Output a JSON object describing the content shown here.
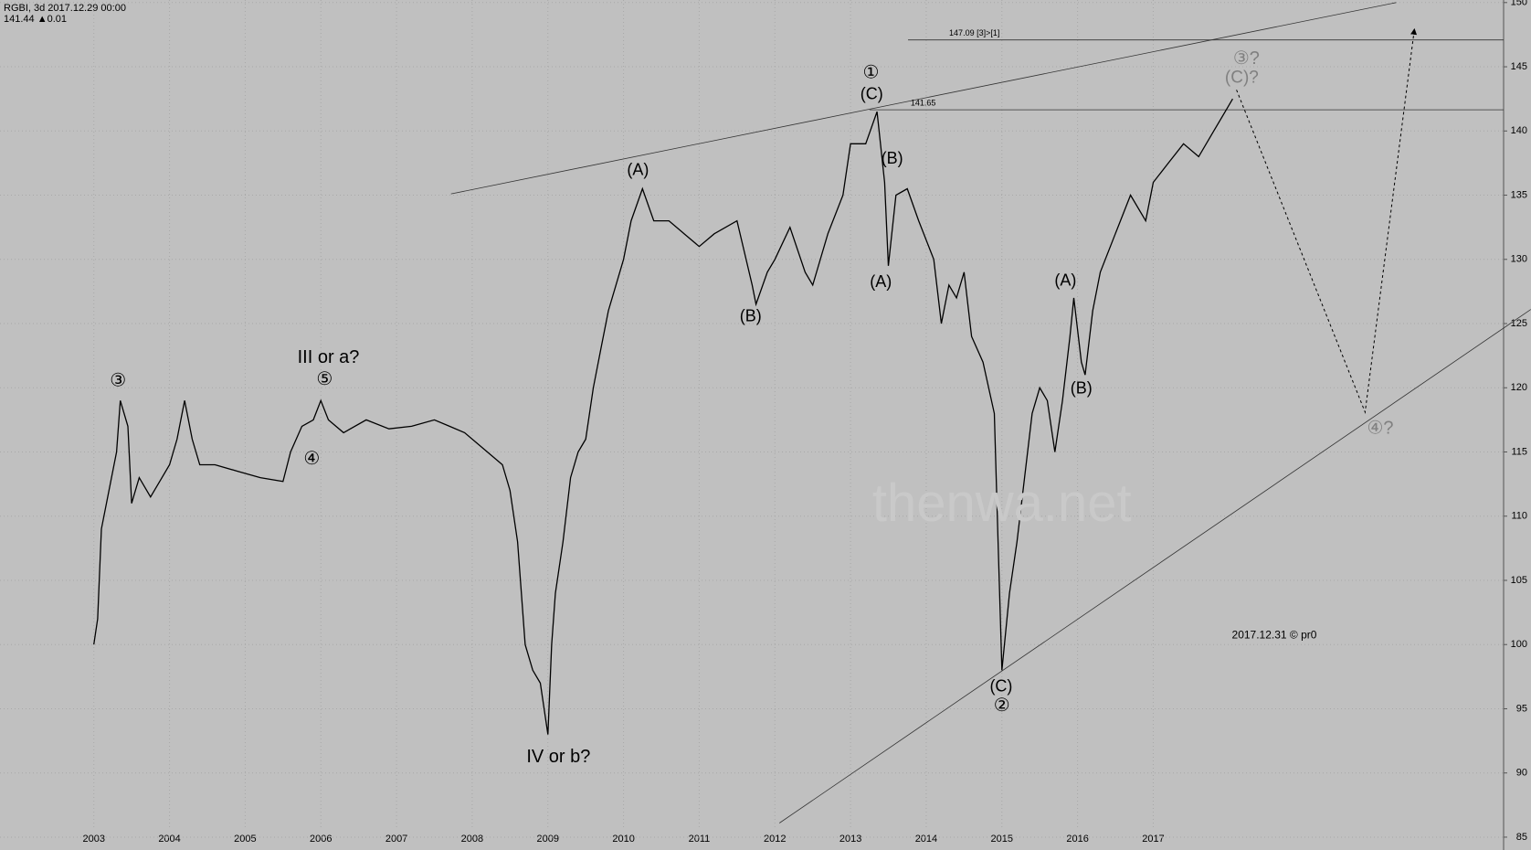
{
  "chart_data": {
    "type": "line",
    "title": "RGBI, 3d 2017.12.29 00:00",
    "subtitle": "141.44 ▲0.01",
    "xlim": [
      2001.76,
      2021.63
    ],
    "ylim": [
      84,
      150.2
    ],
    "xticks": [
      2003,
      2004,
      2005,
      2006,
      2007,
      2008,
      2009,
      2010,
      2011,
      2012,
      2013,
      2014,
      2015,
      2016,
      2017
    ],
    "yticks": [
      85,
      90,
      95,
      100,
      105,
      110,
      115,
      120,
      125,
      130,
      135,
      140,
      145,
      150
    ],
    "grid": true,
    "series": [
      {
        "color": "#000000",
        "style": "solid",
        "x": [
          2003.0,
          2003.05,
          2003.1,
          2003.2,
          2003.3,
          2003.35,
          2003.45,
          2003.5,
          2003.6,
          2003.75,
          2003.9,
          2004.0,
          2004.1,
          2004.2,
          2004.3,
          2004.4,
          2004.6,
          2004.9,
          2005.2,
          2005.5,
          2005.6,
          2005.75,
          2005.9,
          2006.0,
          2006.1,
          2006.3,
          2006.6,
          2006.9,
          2007.2,
          2007.5,
          2007.7,
          2007.9,
          2008.2,
          2008.4,
          2008.5,
          2008.6,
          2008.7,
          2008.8,
          2008.9,
          2009.0,
          2009.05,
          2009.1,
          2009.2,
          2009.3,
          2009.4,
          2009.5,
          2009.6,
          2009.7,
          2009.8,
          2009.9,
          2010.0,
          2010.1,
          2010.25,
          2010.4,
          2010.6,
          2010.8,
          2011.0,
          2011.2,
          2011.5,
          2011.7,
          2011.75,
          2011.9,
          2012.0,
          2012.2,
          2012.4,
          2012.5,
          2012.7,
          2012.9,
          2013.0,
          2013.2,
          2013.35,
          2013.45,
          2013.5,
          2013.6,
          2013.75,
          2013.9,
          2014.1,
          2014.2,
          2014.3,
          2014.4,
          2014.5,
          2014.6,
          2014.75,
          2014.9,
          2014.95,
          2015.0,
          2015.1,
          2015.2,
          2015.3,
          2015.4,
          2015.5,
          2015.6,
          2015.7,
          2015.8,
          2015.9,
          2015.95,
          2016.05,
          2016.1,
          2016.2,
          2016.3,
          2016.5,
          2016.7,
          2016.9,
          2017.0,
          2017.2,
          2017.4,
          2017.6,
          2017.8,
          2017.95,
          2018.05
        ],
        "values": [
          100,
          102,
          109,
          112,
          115,
          119,
          117,
          111,
          113,
          111.5,
          113,
          114,
          116,
          119,
          116,
          114,
          114,
          113.5,
          113,
          112.7,
          115,
          117,
          117.5,
          119,
          117.5,
          116.5,
          117.5,
          116.8,
          117,
          117.5,
          117,
          116.5,
          115,
          114,
          112,
          108,
          100,
          98,
          97,
          93,
          100,
          104,
          108,
          113,
          115,
          116,
          120,
          123,
          126,
          128,
          130,
          133,
          135.5,
          133,
          133,
          132,
          131,
          132,
          133,
          128,
          126.5,
          129,
          130,
          132.5,
          129,
          128,
          132,
          135,
          139,
          139,
          141.5,
          136,
          129.5,
          135,
          135.5,
          133,
          130,
          125,
          128,
          127,
          129,
          124,
          122,
          118,
          108,
          98,
          104,
          108,
          113,
          118,
          120,
          119,
          115,
          119,
          124,
          127,
          122,
          121,
          126,
          129,
          132,
          135,
          133,
          136,
          137.5,
          139,
          138,
          140,
          141.5,
          142.5
        ]
      },
      {
        "color": "#000000",
        "style": "dashed-arrow",
        "x": [
          2018.1,
          2019.8,
          2020.45
        ],
        "values": [
          143.2,
          118.1,
          147.9
        ]
      }
    ],
    "lines": [
      {
        "x": [
          2007.72,
          2020.21
        ],
        "values": [
          135.1,
          150.0
        ]
      },
      {
        "x": [
          2012.06,
          2021.99
        ],
        "values": [
          86.1,
          126.1
        ]
      }
    ],
    "levels": [
      {
        "value": 147.09,
        "from": 2013.76,
        "label": "147.09  [3]>[1]"
      },
      {
        "value": 141.65,
        "from": 2013.25,
        "label": "141.65"
      }
    ],
    "annotations": [
      {
        "text": "③",
        "x": 2003.32,
        "y": 120.5,
        "color": "#000000",
        "size": 20
      },
      {
        "text": "III or a?",
        "x": 2006.1,
        "y": 122.3,
        "color": "#000000",
        "size": 20
      },
      {
        "text": "⑤",
        "x": 2006.05,
        "y": 120.6,
        "color": "#000000",
        "size": 20
      },
      {
        "text": "④",
        "x": 2005.88,
        "y": 114.4,
        "color": "#000000",
        "size": 20
      },
      {
        "text": "IV or b?",
        "x": 2009.14,
        "y": 91.2,
        "color": "#000000",
        "size": 20
      },
      {
        "text": "(A)",
        "x": 2010.19,
        "y": 136.9,
        "color": "#000000",
        "size": 18
      },
      {
        "text": "(B)",
        "x": 2011.68,
        "y": 125.5,
        "color": "#000000",
        "size": 18
      },
      {
        "text": "①",
        "x": 2013.27,
        "y": 144.5,
        "color": "#000000",
        "size": 20
      },
      {
        "text": "(C)",
        "x": 2013.28,
        "y": 142.8,
        "color": "#000000",
        "size": 18
      },
      {
        "text": "(B)",
        "x": 2013.55,
        "y": 137.8,
        "color": "#000000",
        "size": 18
      },
      {
        "text": "(A)",
        "x": 2013.4,
        "y": 128.2,
        "color": "#000000",
        "size": 18
      },
      {
        "text": "(A)",
        "x": 2015.84,
        "y": 128.3,
        "color": "#000000",
        "size": 18
      },
      {
        "text": "(B)",
        "x": 2016.05,
        "y": 119.9,
        "color": "#000000",
        "size": 18
      },
      {
        "text": "(C)",
        "x": 2014.99,
        "y": 96.7,
        "color": "#000000",
        "size": 18
      },
      {
        "text": "②",
        "x": 2015.0,
        "y": 95.2,
        "color": "#000000",
        "size": 20
      },
      {
        "text": "③?",
        "x": 2018.23,
        "y": 145.6,
        "color": "#808080",
        "size": 20
      },
      {
        "text": "(C)?",
        "x": 2018.17,
        "y": 144.1,
        "color": "#808080",
        "size": 19
      },
      {
        "text": "④?",
        "x": 2020.0,
        "y": 116.8,
        "color": "#808080",
        "size": 20
      },
      {
        "text": "2017.12.31 © pr0",
        "x": 2018.6,
        "y": 100.7,
        "color": "#000000",
        "size": 12
      },
      {
        "text": "thenwa.net",
        "x": 2015.0,
        "y": 110.7,
        "color": "#c9c9c9",
        "size": 58
      }
    ]
  }
}
